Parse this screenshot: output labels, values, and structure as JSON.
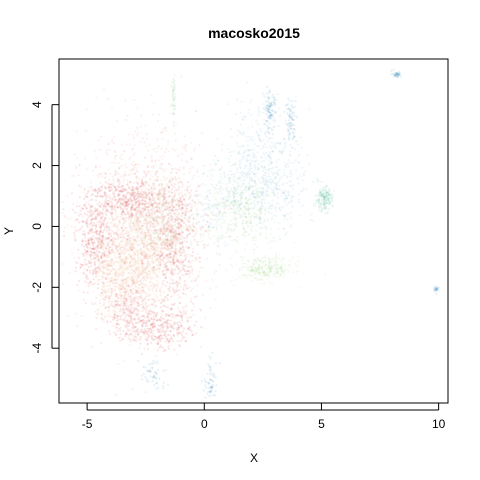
{
  "chart_data": {
    "type": "scatter",
    "title": "macosko2015",
    "xlabel": "X",
    "ylabel": "Y",
    "xlim": [
      -6.2,
      10.4
    ],
    "ylim": [
      -5.8,
      5.5
    ],
    "xticks": [
      "-5",
      "0",
      "5",
      "10"
    ],
    "yticks": [
      "-4",
      "-2",
      "0",
      "2",
      "4"
    ],
    "point_alpha": 0.12,
    "palette": [
      "#d7303a",
      "#f08a5d",
      "#f5c98a",
      "#e9e7a0",
      "#a7d88c",
      "#6fc2a4",
      "#3a8fc1"
    ],
    "clusters": [
      {
        "cx": -2.6,
        "cy": -0.2,
        "sx": 1.35,
        "sy": 1.55,
        "n": 1700,
        "color": "#e58f7d"
      },
      {
        "cx": -4.6,
        "cy": -0.5,
        "sx": 0.45,
        "sy": 0.7,
        "n": 380,
        "color": "#d7303a"
      },
      {
        "cx": -3.2,
        "cy": 0.9,
        "sx": 0.9,
        "sy": 0.35,
        "n": 420,
        "color": "#d7303a"
      },
      {
        "cx": -1.3,
        "cy": -0.5,
        "sx": 0.5,
        "sy": 1.0,
        "n": 420,
        "color": "#d7303a"
      },
      {
        "cx": -2.0,
        "cy": -3.3,
        "sx": 0.75,
        "sy": 0.35,
        "n": 330,
        "color": "#d7303a"
      },
      {
        "cx": -3.3,
        "cy": -2.6,
        "sx": 0.6,
        "sy": 0.45,
        "n": 260,
        "color": "#e0555e"
      },
      {
        "cx": -2.7,
        "cy": -0.9,
        "sx": 0.8,
        "sy": 0.8,
        "n": 520,
        "color": "#f0b681"
      },
      {
        "cx": -1.8,
        "cy": 0.2,
        "sx": 0.7,
        "sy": 0.7,
        "n": 360,
        "color": "#c7d89d"
      },
      {
        "cx": -3.6,
        "cy": -1.5,
        "sx": 0.6,
        "sy": 0.7,
        "n": 360,
        "color": "#f5c98a"
      },
      {
        "cx": 1.6,
        "cy": 0.5,
        "sx": 0.7,
        "sy": 0.6,
        "n": 340,
        "color": "#a7d88c"
      },
      {
        "cx": 2.6,
        "cy": -1.4,
        "sx": 0.6,
        "sy": 0.2,
        "n": 260,
        "color": "#a7d88c"
      },
      {
        "cx": 2.5,
        "cy": 1.2,
        "sx": 0.9,
        "sy": 0.7,
        "n": 420,
        "color": "#7fb7cf"
      },
      {
        "cx": 2.5,
        "cy": 2.6,
        "sx": 0.8,
        "sy": 0.9,
        "n": 250,
        "color": "#7fb7cf"
      },
      {
        "cx": 5.1,
        "cy": 0.9,
        "sx": 0.18,
        "sy": 0.2,
        "n": 180,
        "color": "#6fc2a4"
      },
      {
        "cx": 2.8,
        "cy": 3.8,
        "sx": 0.12,
        "sy": 0.3,
        "n": 90,
        "color": "#3a8fc1"
      },
      {
        "cx": 3.7,
        "cy": 3.5,
        "sx": 0.12,
        "sy": 0.35,
        "n": 70,
        "color": "#3a8fc1"
      },
      {
        "cx": -1.3,
        "cy": 4.2,
        "sx": 0.05,
        "sy": 0.45,
        "n": 60,
        "color": "#9fcf9a"
      },
      {
        "cx": 8.2,
        "cy": 5.0,
        "sx": 0.1,
        "sy": 0.05,
        "n": 40,
        "color": "#3a8fc1"
      },
      {
        "cx": 9.9,
        "cy": -2.05,
        "sx": 0.05,
        "sy": 0.05,
        "n": 25,
        "color": "#3a8fc1"
      },
      {
        "cx": 0.3,
        "cy": -5.1,
        "sx": 0.15,
        "sy": 0.35,
        "n": 60,
        "color": "#3a8fc1"
      },
      {
        "cx": -2.2,
        "cy": -4.9,
        "sx": 0.3,
        "sy": 0.3,
        "n": 50,
        "color": "#3a8fc1"
      },
      {
        "cx": 0.5,
        "cy": 0.6,
        "sx": 0.5,
        "sy": 0.6,
        "n": 200,
        "color": "#9fc8d8"
      }
    ]
  }
}
